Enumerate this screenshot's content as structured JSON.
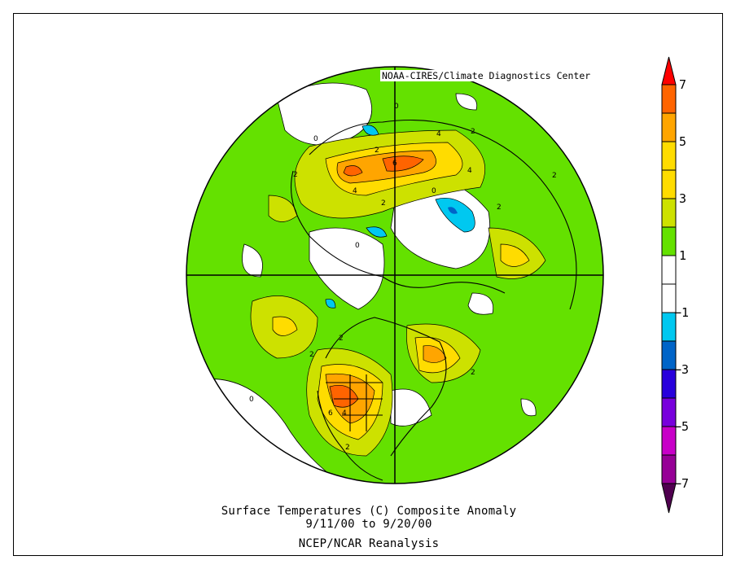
{
  "credit": "NOAA-CIRES/Climate Diagnostics Center",
  "title": "Surface Temperatures (C)   Composite Anomaly",
  "date_range": "9/11/00  to 9/20/00",
  "source": "NCEP/NCAR Reanalysis",
  "colorbar": {
    "labels": [
      "7",
      "5",
      "3",
      "1",
      "−1",
      "−3",
      "−5",
      "−7"
    ],
    "colors": {
      "over": "#ff0000",
      "bins": [
        "#ff6400",
        "#ffa500",
        "#ffdc00",
        "#ffdc00",
        "#cde100",
        "#64e100",
        "#ffffff",
        "#ffffff",
        "#00c8f0",
        "#0064c8",
        "#2800dc",
        "#7800dc",
        "#c800c8",
        "#960096"
      ],
      "under": "#500050"
    }
  },
  "contour_labels": [
    "0",
    "2",
    "4",
    "6",
    "2",
    "4",
    "0",
    "2",
    "2",
    "0",
    "2",
    "4",
    "2",
    "2",
    "6",
    "4",
    "2",
    "2",
    "0",
    "0",
    "2"
  ]
}
